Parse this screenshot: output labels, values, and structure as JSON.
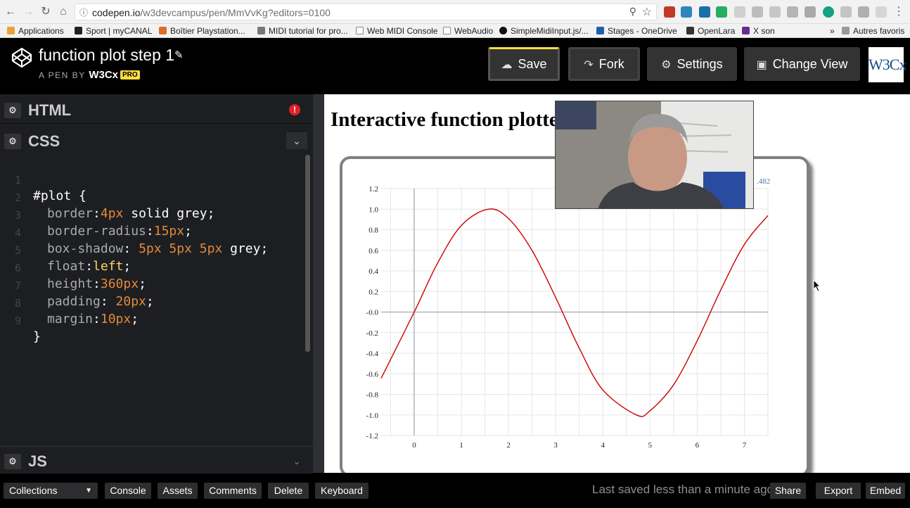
{
  "browser": {
    "url_domain": "codepen.io",
    "url_path": "/w3devcampus/pen/MmVvKg?editors=0100",
    "bookmarks": [
      "Applications",
      "Sport | myCANAL",
      "Boîtier Playstation...",
      "MIDI tutorial for pro...",
      "Web MIDI Console",
      "WebAudio",
      "SimpleMidiInput.js/...",
      "Stages - OneDrive",
      "OpenLara",
      "X son"
    ],
    "more": "»",
    "other_bookmarks": "Autres favoris"
  },
  "header": {
    "pen_title": "function plot step 1",
    "author_prefix": "A PEN BY",
    "author": "W3Cx",
    "pro_badge": "PRO",
    "save_label": "Save",
    "fork_label": "Fork",
    "settings_label": "Settings",
    "change_view_label": "Change View",
    "avatar_text": "W3Cx"
  },
  "editors": {
    "html_label": "HTML",
    "css_label": "CSS",
    "js_label": "JS",
    "css_lines": [
      {
        "n": "1",
        "sel": "#plot {"
      },
      {
        "n": "2",
        "prop": "border",
        "val": "4px",
        "rest": " solid grey;"
      },
      {
        "n": "3",
        "prop": "border-radius",
        "val": "15px",
        "rest": ";"
      },
      {
        "n": "4",
        "prop": "box-shadow",
        "val": "5px 5px 5px",
        "rest": " grey;"
      },
      {
        "n": "5",
        "prop": "float",
        "val": "left",
        "rest": ";"
      },
      {
        "n": "6",
        "prop": "height",
        "val": "360px",
        "rest": ";"
      },
      {
        "n": "7",
        "prop": "padding",
        "val": "20px",
        "rest": ";"
      },
      {
        "n": "8",
        "prop": "margin",
        "val": "10px",
        "rest": ";"
      },
      {
        "n": "9",
        "sel": "}"
      }
    ]
  },
  "preview": {
    "title": "Interactive function plotter",
    "coord_readout": ".482"
  },
  "chart_data": {
    "type": "line",
    "title": "",
    "xlabel": "",
    "ylabel": "",
    "xlim": [
      -0.7,
      7.5
    ],
    "ylim": [
      -1.2,
      1.2
    ],
    "x_ticks": [
      "0",
      "1",
      "2",
      "3",
      "4",
      "5",
      "6",
      "7"
    ],
    "y_ticks": [
      "1.2",
      "1.0",
      "0.8",
      "0.6",
      "0.4",
      "0.2",
      "-0.0",
      "-0.2",
      "-0.4",
      "-0.6",
      "-0.8",
      "-1.0",
      "-1.2"
    ],
    "grid": true,
    "series": [
      {
        "function": "sin(x)",
        "color": "#cc0000",
        "x": [
          -0.7,
          0,
          0.5,
          1.0,
          1.571,
          2.0,
          2.5,
          3.0,
          3.5,
          4.0,
          4.712,
          5.0,
          5.5,
          6.0,
          6.5,
          7.0,
          7.5
        ],
        "y": [
          -0.644,
          0.0,
          0.479,
          0.841,
          1.0,
          0.909,
          0.598,
          0.141,
          -0.351,
          -0.757,
          -1.0,
          -0.959,
          -0.706,
          -0.279,
          0.215,
          0.657,
          0.938
        ]
      }
    ]
  },
  "bottom_bar": {
    "collections": "Collections",
    "console": "Console",
    "assets": "Assets",
    "comments": "Comments",
    "delete": "Delete",
    "keyboard": "Keyboard",
    "last_saved": "Last saved less than a minute ago",
    "share": "Share",
    "export": "Export",
    "embed": "Embed"
  }
}
